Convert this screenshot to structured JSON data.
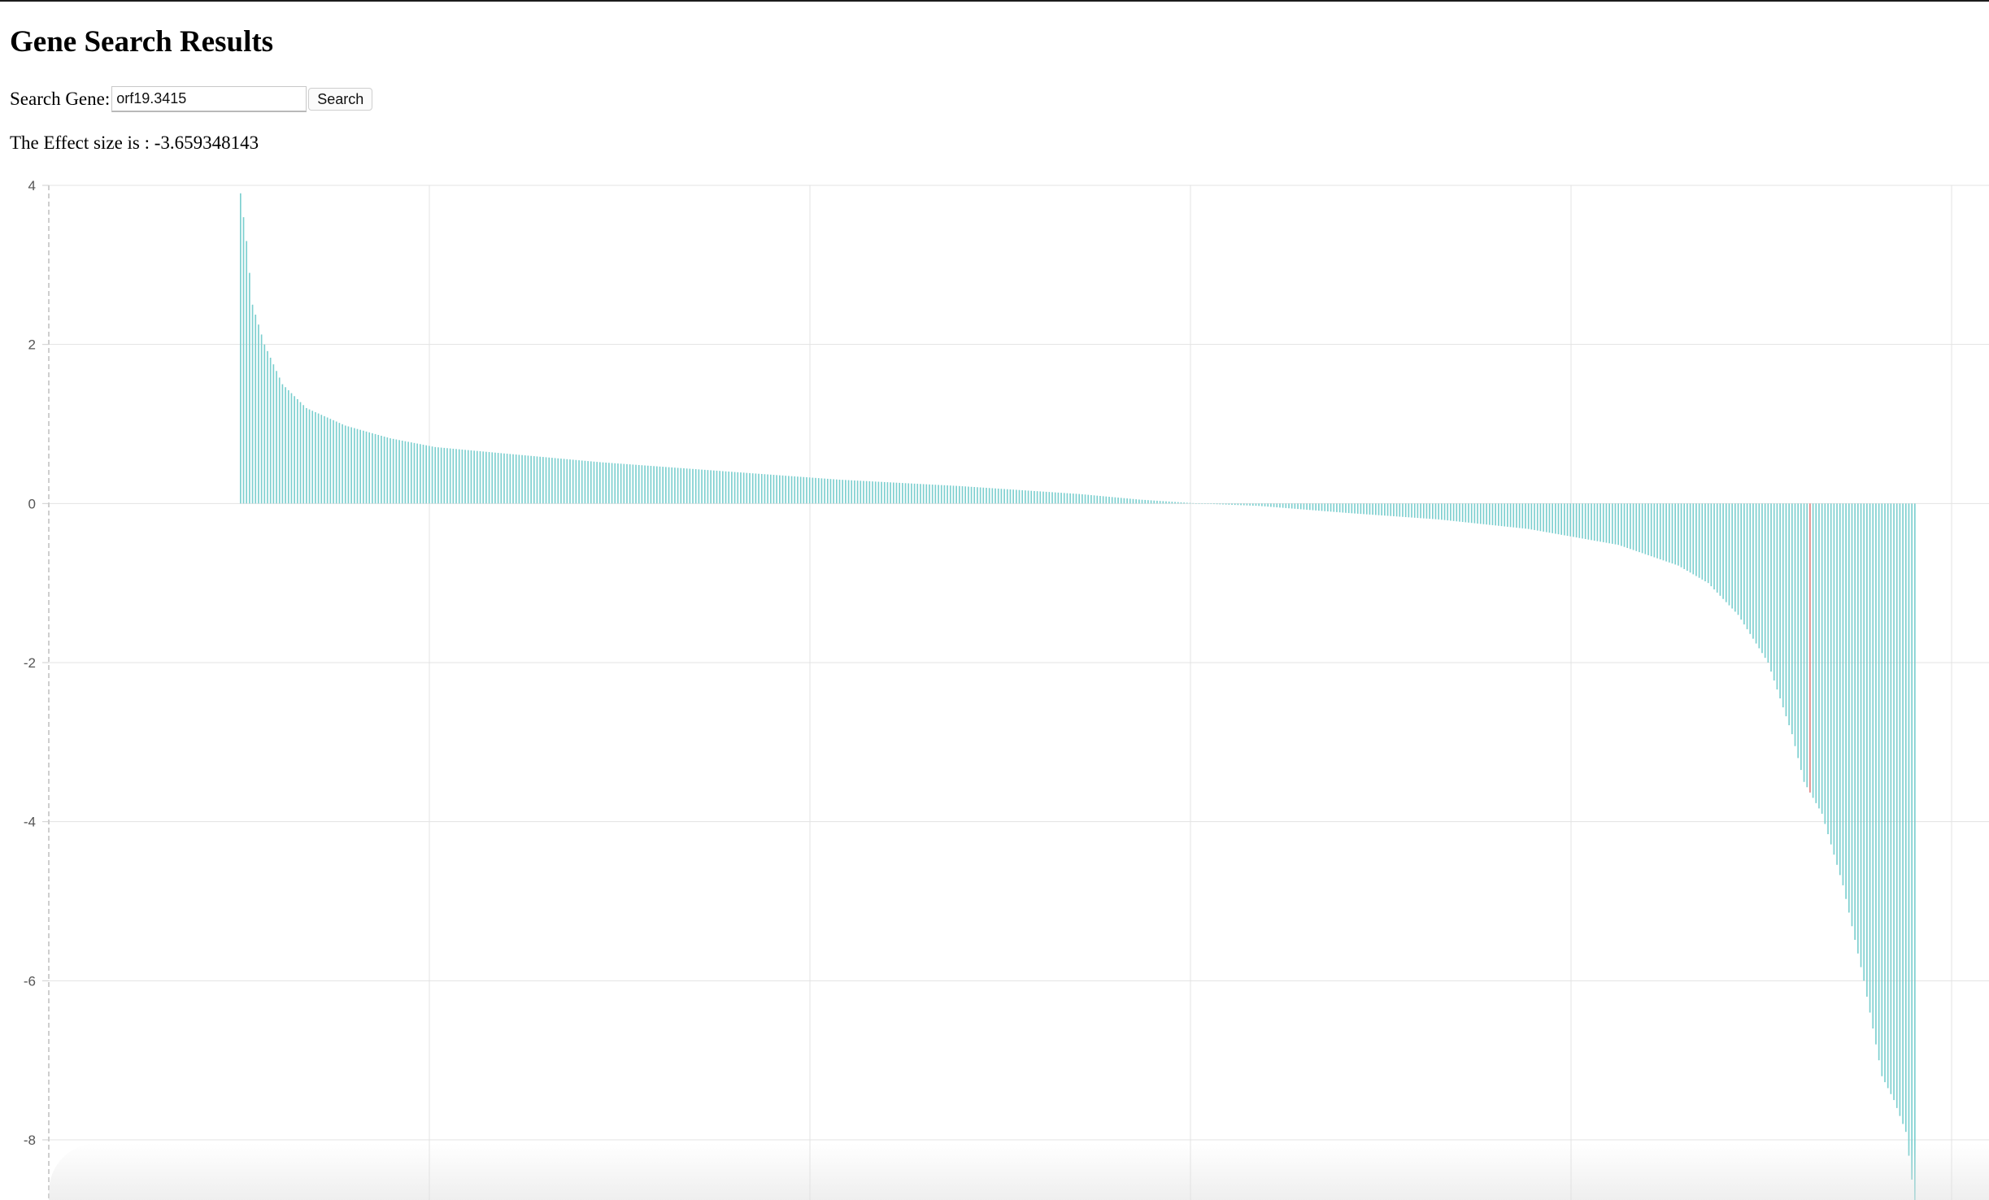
{
  "page": {
    "title": "Gene Search Results"
  },
  "search": {
    "label": "Search Gene:",
    "value": "orf19.3415",
    "button_label": "Search"
  },
  "result": {
    "effect_text": "The Effect size is : -3.659348143"
  },
  "colors": {
    "bar": "#7ccfcf",
    "highlight": "#e08080",
    "grid": "#e3e3e3"
  },
  "chart_data": {
    "type": "bar",
    "title": "",
    "xlabel": "",
    "ylabel": "",
    "ylim": [
      -8.8,
      4
    ],
    "yticks": [
      4,
      2,
      0,
      -2,
      -4,
      -6,
      -8
    ],
    "bar_count": 560,
    "grid": true,
    "sorted": "descending",
    "highlight_value": -3.659348143,
    "profile": [
      {
        "rank": 0,
        "value": 3.9
      },
      {
        "rank": 2,
        "value": 3.3
      },
      {
        "rank": 4,
        "value": 2.5
      },
      {
        "rank": 8,
        "value": 2.0
      },
      {
        "rank": 14,
        "value": 1.5
      },
      {
        "rank": 22,
        "value": 1.2
      },
      {
        "rank": 35,
        "value": 0.98
      },
      {
        "rank": 50,
        "value": 0.82
      },
      {
        "rank": 65,
        "value": 0.71
      },
      {
        "rank": 85,
        "value": 0.64
      },
      {
        "rank": 120,
        "value": 0.52
      },
      {
        "rank": 160,
        "value": 0.41
      },
      {
        "rank": 200,
        "value": 0.3
      },
      {
        "rank": 240,
        "value": 0.22
      },
      {
        "rank": 280,
        "value": 0.12
      },
      {
        "rank": 300,
        "value": 0.05
      },
      {
        "rank": 320,
        "value": 0.0
      },
      {
        "rank": 340,
        "value": -0.03
      },
      {
        "rank": 370,
        "value": -0.12
      },
      {
        "rank": 400,
        "value": -0.2
      },
      {
        "rank": 430,
        "value": -0.32
      },
      {
        "rank": 460,
        "value": -0.52
      },
      {
        "rank": 480,
        "value": -0.78
      },
      {
        "rank": 490,
        "value": -1.0
      },
      {
        "rank": 500,
        "value": -1.4
      },
      {
        "rank": 510,
        "value": -2.0
      },
      {
        "rank": 518,
        "value": -2.9
      },
      {
        "rank": 522,
        "value": -3.5
      },
      {
        "rank": 528,
        "value": -3.9
      },
      {
        "rank": 535,
        "value": -4.8
      },
      {
        "rank": 542,
        "value": -6.0
      },
      {
        "rank": 548,
        "value": -7.2
      },
      {
        "rank": 552,
        "value": -7.5
      },
      {
        "rank": 556,
        "value": -7.9
      },
      {
        "rank": 559,
        "value": -8.8
      }
    ]
  }
}
